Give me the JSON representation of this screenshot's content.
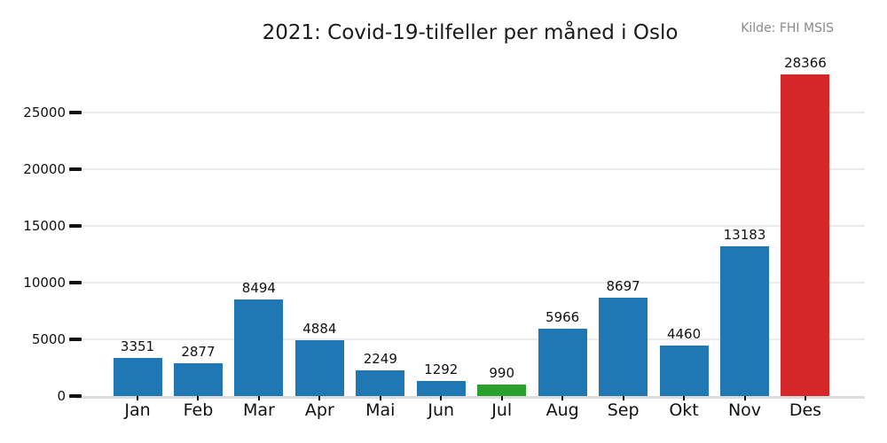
{
  "header": {
    "title": "2021: Covid-19-tilfeller per måned i Oslo",
    "source": "Kilde: FHI MSIS"
  },
  "chart_data": {
    "type": "bar",
    "title": "2021: Covid-19-tilfeller per måned i Oslo",
    "source_annotation": "Kilde: FHI MSIS",
    "categories": [
      "Jan",
      "Feb",
      "Mar",
      "Apr",
      "Mai",
      "Jun",
      "Jul",
      "Aug",
      "Sep",
      "Okt",
      "Nov",
      "Des"
    ],
    "values": [
      3351,
      2877,
      8494,
      4884,
      2249,
      1292,
      990,
      5966,
      8697,
      4460,
      13183,
      28366
    ],
    "bar_colors": [
      "#1f77b4",
      "#1f77b4",
      "#1f77b4",
      "#1f77b4",
      "#1f77b4",
      "#1f77b4",
      "#2ca02c",
      "#1f77b4",
      "#1f77b4",
      "#1f77b4",
      "#1f77b4",
      "#d62728"
    ],
    "value_labels_shown": true,
    "xlabel": "",
    "ylabel": "",
    "yticks": [
      0,
      5000,
      10000,
      15000,
      20000,
      25000
    ],
    "ylim": [
      0,
      29000
    ],
    "grid": "horizontal",
    "legend": "none"
  },
  "colors": {
    "bar_default": "#1f77b4",
    "bar_highlight_low": "#2ca02c",
    "bar_highlight_high": "#d62728",
    "gridline": "#ebebeb",
    "axis_line": "#dcdcdc",
    "tick_mark": "#111111",
    "label_text": "#111111",
    "source_text": "#8a8a8a",
    "background": "#ffffff"
  }
}
